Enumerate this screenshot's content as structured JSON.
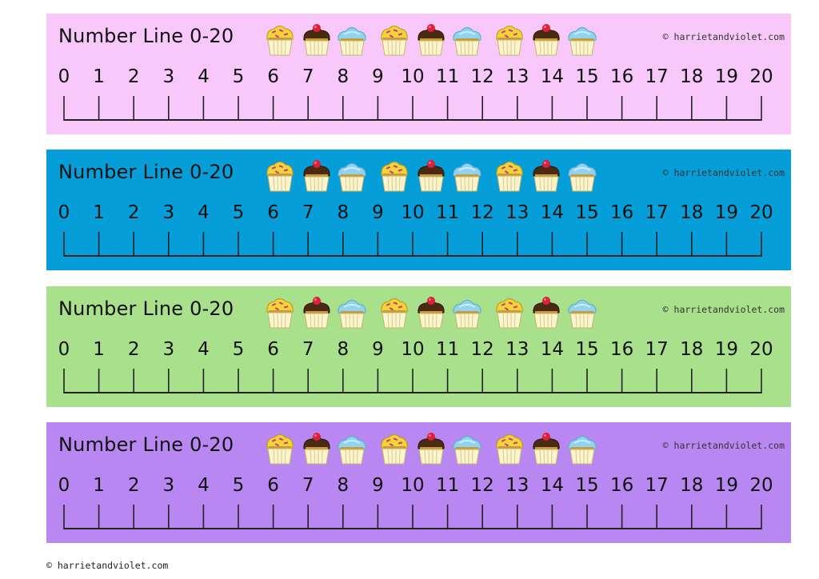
{
  "strips": [
    {
      "title": "Number Line 0-20",
      "credit": "© harrietandviolet.com",
      "color": "#f7c8f9"
    },
    {
      "title": "Number Line 0-20",
      "credit": "© harrietandviolet.com",
      "color": "#059ed8"
    },
    {
      "title": "Number Line 0-20",
      "credit": "© harrietandviolet.com",
      "color": "#a8e08c"
    },
    {
      "title": "Number Line 0-20",
      "credit": "© harrietandviolet.com",
      "color": "#b987f1"
    }
  ],
  "numbers": [
    "0",
    "1",
    "2",
    "3",
    "4",
    "5",
    "6",
    "7",
    "8",
    "9",
    "10",
    "11",
    "12",
    "13",
    "14",
    "15",
    "16",
    "17",
    "18",
    "19",
    "20"
  ],
  "cupcakes": [
    "yellow-cupcake-icon",
    "cherry-cupcake-icon",
    "blue-cupcake-icon",
    "yellow-cupcake-icon",
    "cherry-cupcake-icon",
    "blue-cupcake-icon",
    "yellow-cupcake-icon",
    "cherry-cupcake-icon",
    "blue-cupcake-icon"
  ],
  "footer": {
    "credit": "© harrietandviolet.com"
  }
}
